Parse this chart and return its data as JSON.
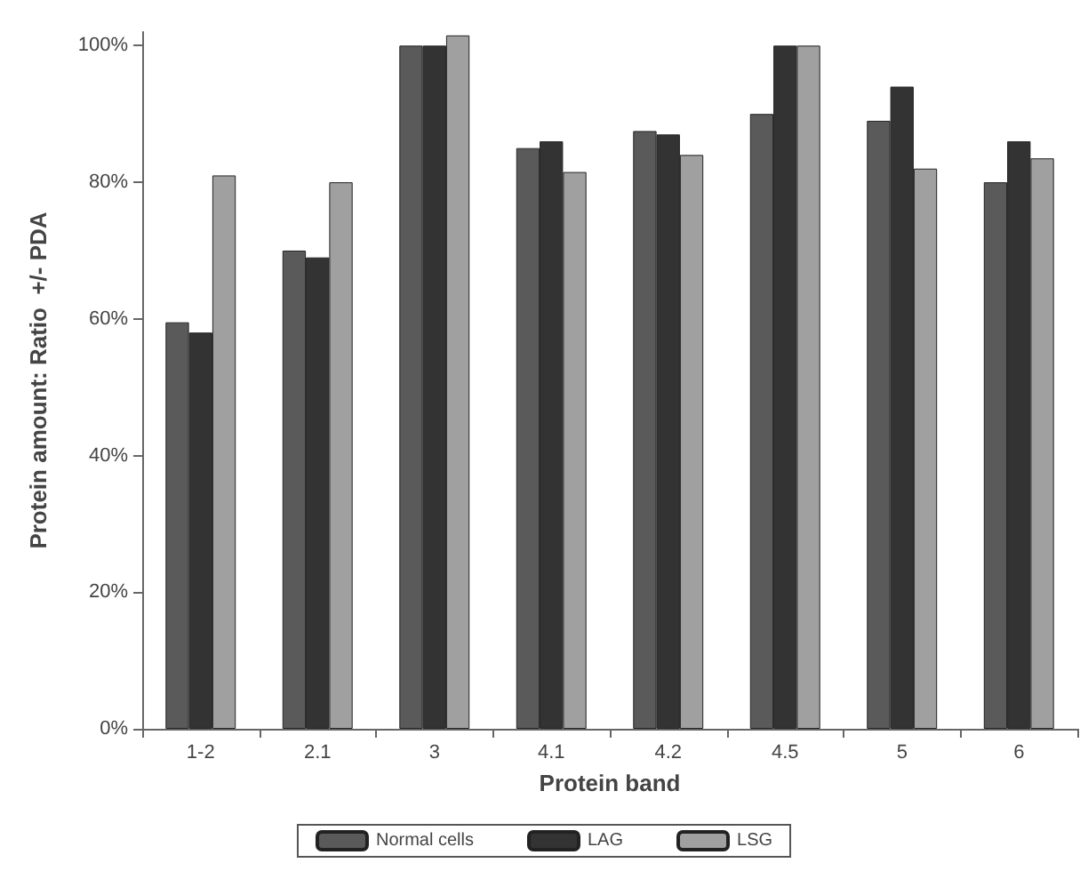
{
  "chart_data": {
    "type": "bar",
    "xlabel": "Protein band",
    "ylabel": "Protein amount: Ratio  +/- PDA",
    "categories": [
      "1-2",
      "2.1",
      "3",
      "4.1",
      "4.2",
      "4.5",
      "5",
      "6"
    ],
    "series": [
      {
        "name": "Normal cells",
        "color": "#5a5a5a",
        "values": [
          59.5,
          70,
          100,
          85,
          87.5,
          90,
          89,
          80
        ]
      },
      {
        "name": "LAG",
        "color": "#333333",
        "values": [
          58,
          69,
          100,
          86,
          87,
          100,
          94,
          86
        ]
      },
      {
        "name": "LSG",
        "color": "#a0a0a0",
        "values": [
          81,
          80,
          101.5,
          81.5,
          84,
          100,
          82,
          83.5
        ]
      }
    ],
    "ylim": [
      0,
      102
    ],
    "yticks": [
      {
        "value": 0,
        "label": "0%"
      },
      {
        "value": 20,
        "label": "20%"
      },
      {
        "value": 40,
        "label": "40%"
      },
      {
        "value": 60,
        "label": "60%"
      },
      {
        "value": 80,
        "label": "80%"
      },
      {
        "value": 100,
        "label": "100%"
      }
    ],
    "grid": false,
    "legend": "bottom"
  }
}
